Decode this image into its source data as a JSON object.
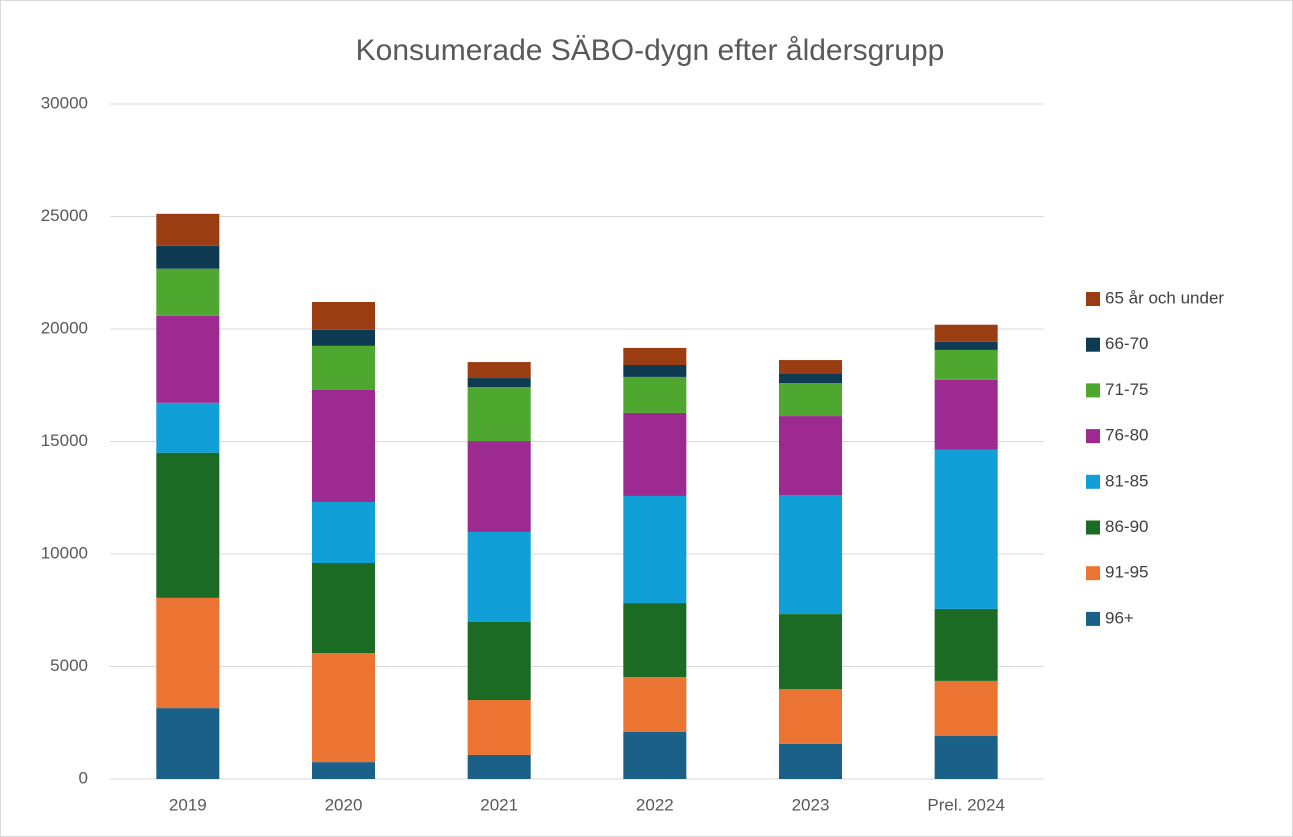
{
  "chart_data": {
    "type": "stacked_bar",
    "title": "Konsumerade SÄBO-dygn efter åldersgrupp",
    "categories": [
      "2019",
      "2020",
      "2021",
      "2022",
      "2023",
      "Prel. 2024"
    ],
    "series": [
      {
        "name": "96+",
        "color": "#1b6087",
        "values": [
          3150,
          750,
          1070,
          2090,
          1560,
          1910
        ]
      },
      {
        "name": "91-95",
        "color": "#ec7433",
        "values": [
          4900,
          4850,
          2440,
          2440,
          2440,
          2450
        ]
      },
      {
        "name": "86-90",
        "color": "#1b6b24",
        "values": [
          6450,
          4000,
          3470,
          3290,
          3330,
          3200
        ]
      },
      {
        "name": "81-85",
        "color": "#119fd7",
        "values": [
          2220,
          2710,
          4000,
          4760,
          5290,
          7070
        ]
      },
      {
        "name": "76-80",
        "color": "#9c2a91",
        "values": [
          3870,
          4980,
          4040,
          3690,
          3510,
          3110
        ]
      },
      {
        "name": "71-75",
        "color": "#4ea72e",
        "values": [
          2090,
          1960,
          2400,
          1600,
          1470,
          1330
        ]
      },
      {
        "name": "66-70",
        "color": "#0e3a52",
        "values": [
          1020,
          710,
          400,
          530,
          400,
          360
        ]
      },
      {
        "name": "65 år och under",
        "color": "#9b3d12",
        "values": [
          1420,
          1240,
          710,
          760,
          620,
          760
        ]
      }
    ],
    "ylim": [
      0,
      30000
    ],
    "yticks": [
      0,
      5000,
      10000,
      15000,
      20000,
      25000,
      30000
    ],
    "grid": true,
    "legend": "right"
  }
}
